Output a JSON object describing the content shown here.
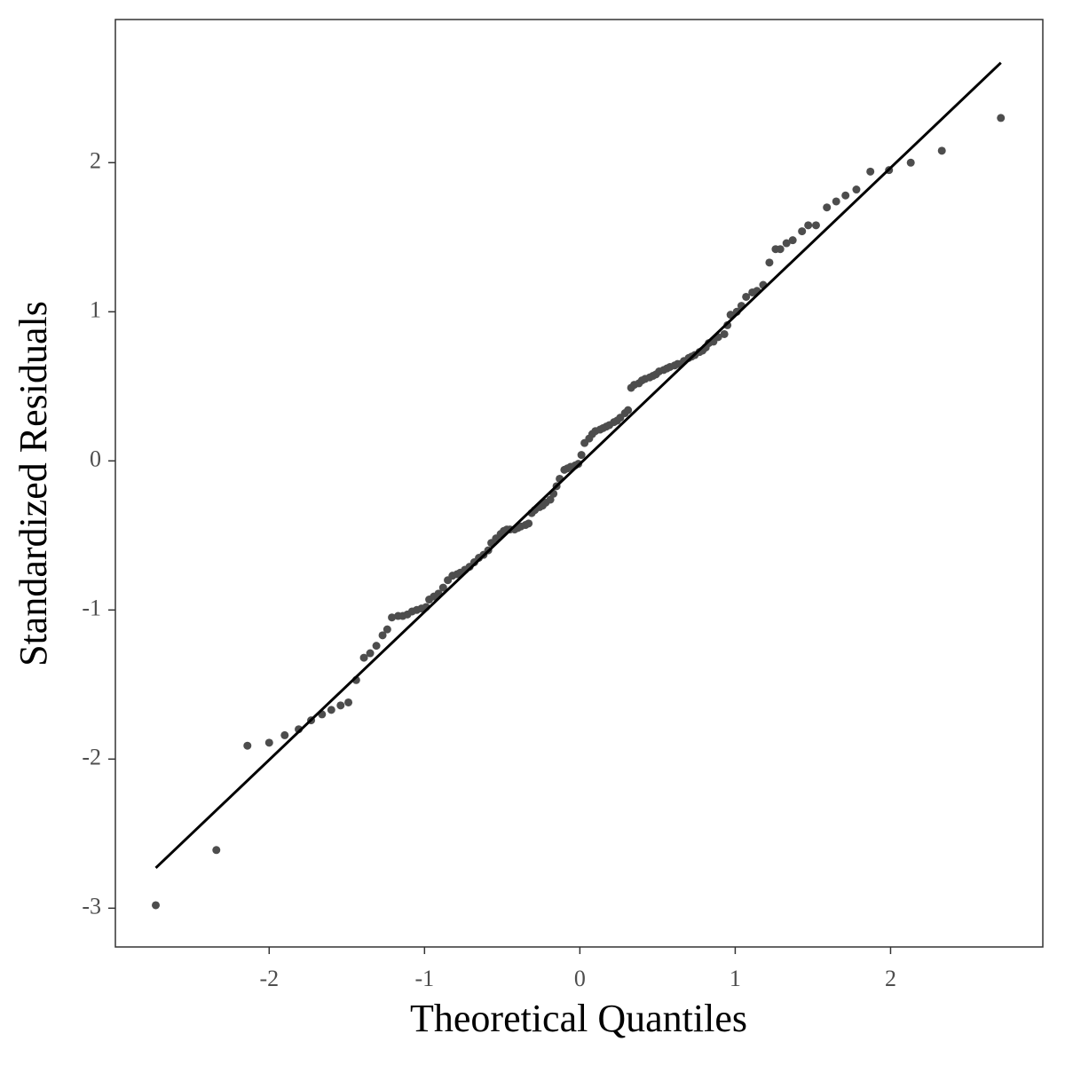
{
  "chart_data": {
    "type": "scatter",
    "x_label": "Theoretical Quantiles",
    "y_label": "Standardized Residuals",
    "xlim": [
      -2.99,
      2.98
    ],
    "ylim": [
      -3.26,
      2.96
    ],
    "xticks": [
      -2,
      -1,
      0,
      1,
      2
    ],
    "yticks": [
      -3,
      -2,
      -1,
      0,
      1,
      2
    ],
    "grid": false,
    "color": "#4d4d4d",
    "line": {
      "color": "#000000",
      "x": [
        -2.73,
        2.71
      ],
      "y": [
        -2.73,
        2.67
      ]
    },
    "x": [
      -2.73,
      -2.34,
      -2.14,
      -2.0,
      -1.9,
      -1.81,
      -1.73,
      -1.66,
      -1.6,
      -1.54,
      -1.49,
      -1.44,
      -1.39,
      -1.35,
      -1.31,
      -1.27,
      -1.24,
      -1.21,
      -1.17,
      -1.14,
      -1.11,
      -1.08,
      -1.05,
      -1.02,
      -0.99,
      -0.97,
      -0.94,
      -0.91,
      -0.88,
      -0.85,
      -0.82,
      -0.79,
      -0.77,
      -0.74,
      -0.71,
      -0.68,
      -0.65,
      -0.62,
      -0.59,
      -0.57,
      -0.54,
      -0.51,
      -0.49,
      -0.47,
      -0.45,
      -0.42,
      -0.4,
      -0.38,
      -0.35,
      -0.33,
      -0.31,
      -0.29,
      -0.26,
      -0.24,
      -0.22,
      -0.19,
      -0.17,
      -0.15,
      -0.13,
      -0.1,
      -0.08,
      -0.06,
      -0.03,
      -0.01,
      0.01,
      0.03,
      0.06,
      0.08,
      0.1,
      0.13,
      0.15,
      0.17,
      0.19,
      0.22,
      0.24,
      0.26,
      0.29,
      0.31,
      0.33,
      0.35,
      0.38,
      0.4,
      0.42,
      0.45,
      0.47,
      0.49,
      0.51,
      0.54,
      0.56,
      0.58,
      0.61,
      0.63,
      0.65,
      0.67,
      0.7,
      0.72,
      0.74,
      0.77,
      0.79,
      0.81,
      0.83,
      0.86,
      0.89,
      0.93,
      0.95,
      0.97,
      1.01,
      1.04,
      1.07,
      1.11,
      1.14,
      1.18,
      1.22,
      1.26,
      1.29,
      1.33,
      1.37,
      1.43,
      1.47,
      1.52,
      1.59,
      1.65,
      1.71,
      1.78,
      1.87,
      1.99,
      2.13,
      2.33,
      2.71
    ],
    "values": [
      -2.98,
      -2.61,
      -1.91,
      -1.89,
      -1.84,
      -1.8,
      -1.74,
      -1.7,
      -1.67,
      -1.64,
      -1.62,
      -1.47,
      -1.32,
      -1.29,
      -1.24,
      -1.17,
      -1.13,
      -1.05,
      -1.04,
      -1.04,
      -1.03,
      -1.01,
      -1.0,
      -0.99,
      -0.98,
      -0.93,
      -0.91,
      -0.89,
      -0.85,
      -0.8,
      -0.77,
      -0.76,
      -0.75,
      -0.73,
      -0.71,
      -0.68,
      -0.65,
      -0.63,
      -0.6,
      -0.55,
      -0.52,
      -0.49,
      -0.47,
      -0.46,
      -0.46,
      -0.46,
      -0.45,
      -0.44,
      -0.43,
      -0.42,
      -0.35,
      -0.33,
      -0.31,
      -0.3,
      -0.28,
      -0.26,
      -0.22,
      -0.17,
      -0.12,
      -0.06,
      -0.05,
      -0.04,
      -0.03,
      -0.02,
      0.04,
      0.12,
      0.15,
      0.18,
      0.2,
      0.21,
      0.22,
      0.23,
      0.24,
      0.26,
      0.27,
      0.29,
      0.32,
      0.34,
      0.49,
      0.51,
      0.52,
      0.54,
      0.55,
      0.56,
      0.57,
      0.58,
      0.6,
      0.61,
      0.62,
      0.63,
      0.64,
      0.65,
      0.65,
      0.67,
      0.69,
      0.7,
      0.71,
      0.73,
      0.74,
      0.76,
      0.79,
      0.8,
      0.83,
      0.85,
      0.91,
      0.98,
      1.0,
      1.04,
      1.1,
      1.13,
      1.14,
      1.18,
      1.33,
      1.42,
      1.42,
      1.46,
      1.48,
      1.54,
      1.58,
      1.58,
      1.7,
      1.74,
      1.78,
      1.82,
      1.94,
      1.95,
      2.0,
      2.08,
      2.3
    ]
  }
}
